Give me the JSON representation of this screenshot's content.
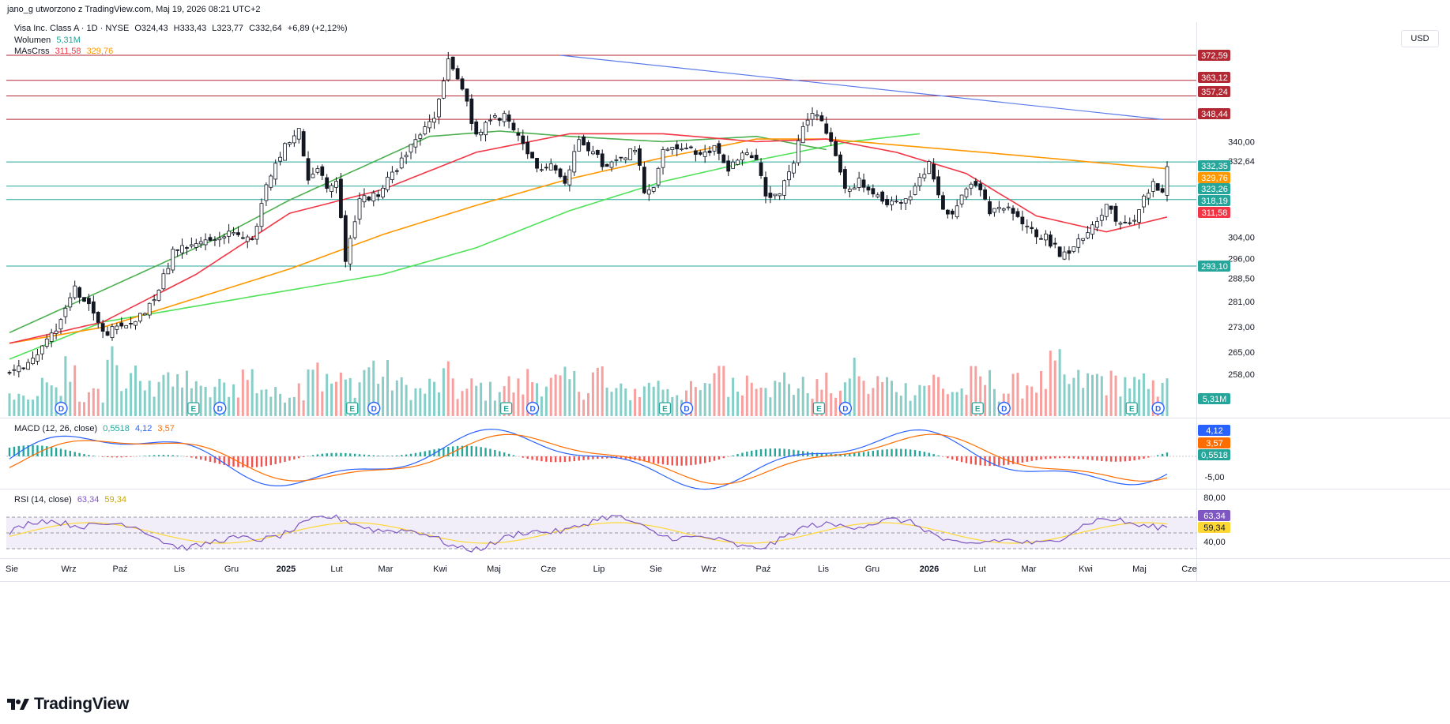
{
  "header": {
    "attribution": "jano_g utworzono z TradingView.com, Maj 19, 2026 08:21 UTC+2"
  },
  "legend": {
    "symbol": "Visa Inc. Class A · 1D · NYSE",
    "o": "O324,43",
    "h": "H333,43",
    "l": "L323,77",
    "c": "C332,64",
    "change": "+6,89 (+2,12%)",
    "volume_label": "Wolumen",
    "volume_value": "5,31M",
    "ma_label": "MAsCrss",
    "ma_fast": "311,58",
    "ma_slow": "329,76",
    "macd_label": "MACD (12, 26, close)",
    "macd_hist": "0,5518",
    "macd_line": "4,12",
    "macd_signal": "3,57",
    "rsi_label": "RSI (14, close)",
    "rsi_value": "63,34",
    "rsi_ma": "59,34"
  },
  "currency_button": "USD",
  "brand": "TradingView",
  "colors": {
    "up": "#26a69a",
    "down": "#ef5350",
    "ma_green": "#4caf50",
    "ma_lime": "#51e25a",
    "ma_red": "#f23645",
    "ma_orange": "#ff9800",
    "trend": "#5b7bea",
    "level_teal": "#26a69a",
    "level_red": "#b22833",
    "macd": "#2962ff",
    "signal": "#ff6d00",
    "rsi": "#7e57c2",
    "rsi_ma": "#fdd835"
  },
  "chart_data": {
    "type": "candlestick",
    "symbol": "Visa Inc. Class A",
    "interval": "1D",
    "exchange": "NYSE",
    "currency": "USD",
    "price_ticks": [
      "340,00",
      "332,64",
      "304,00",
      "296,00",
      "288,50",
      "281,00",
      "273,00",
      "265,00",
      "258,00"
    ],
    "macd_ticks": [
      "-5,00"
    ],
    "rsi_ticks": [
      "80,00",
      "40,00"
    ],
    "time_labels": [
      "Sie",
      "Wrz",
      "Paź",
      "Lis",
      "Gru",
      "2025",
      "Lut",
      "Mar",
      "Kwi",
      "Maj",
      "Cze",
      "Lip",
      "Sie",
      "Wrz",
      "Paź",
      "Lis",
      "Gru",
      "2026",
      "Lut",
      "Mar",
      "Kwi",
      "Maj",
      "Cze"
    ],
    "bold_time_labels": [
      "2025",
      "2026"
    ],
    "price_path": [
      [
        0,
        252
      ],
      [
        5,
        258
      ],
      [
        10,
        270
      ],
      [
        14,
        285
      ],
      [
        17,
        278
      ],
      [
        20,
        268
      ],
      [
        25,
        270
      ],
      [
        30,
        278
      ],
      [
        34,
        293
      ],
      [
        35,
        300
      ],
      [
        40,
        302
      ],
      [
        45,
        304
      ],
      [
        49,
        306
      ],
      [
        52,
        302
      ],
      [
        55,
        323
      ],
      [
        59,
        338
      ],
      [
        62,
        344
      ],
      [
        64,
        326
      ],
      [
        66,
        330
      ],
      [
        68,
        322
      ],
      [
        70,
        326
      ],
      [
        72,
        296
      ],
      [
        75,
        318
      ],
      [
        79,
        320
      ],
      [
        82,
        328
      ],
      [
        85,
        335
      ],
      [
        88,
        343
      ],
      [
        91,
        349
      ],
      [
        94,
        370
      ],
      [
        97,
        360
      ],
      [
        100,
        342
      ],
      [
        103,
        348
      ],
      [
        106,
        350
      ],
      [
        110,
        338
      ],
      [
        113,
        330
      ],
      [
        116,
        332
      ],
      [
        119,
        324
      ],
      [
        122,
        342
      ],
      [
        125,
        336
      ],
      [
        128,
        330
      ],
      [
        131,
        334
      ],
      [
        134,
        338
      ],
      [
        136,
        322
      ],
      [
        138,
        324
      ],
      [
        140,
        336
      ],
      [
        142,
        338
      ],
      [
        145,
        338
      ],
      [
        148,
        334
      ],
      [
        151,
        338
      ],
      [
        154,
        330
      ],
      [
        157,
        336
      ],
      [
        160,
        334
      ],
      [
        162,
        318
      ],
      [
        165,
        320
      ],
      [
        168,
        332
      ],
      [
        170,
        346
      ],
      [
        172,
        352
      ],
      [
        174,
        348
      ],
      [
        176,
        340
      ],
      [
        179,
        322
      ],
      [
        182,
        325
      ],
      [
        185,
        320
      ],
      [
        188,
        316
      ],
      [
        191,
        318
      ],
      [
        194,
        322
      ],
      [
        197,
        332
      ],
      [
        200,
        316
      ],
      [
        202,
        312
      ],
      [
        205,
        323
      ],
      [
        208,
        322
      ],
      [
        210,
        313
      ],
      [
        213,
        315
      ],
      [
        216,
        312
      ],
      [
        219,
        306
      ],
      [
        222,
        304
      ],
      [
        225,
        298
      ],
      [
        228,
        300
      ],
      [
        230,
        304
      ],
      [
        233,
        311
      ],
      [
        235,
        316
      ],
      [
        238,
        308
      ],
      [
        241,
        310
      ],
      [
        243,
        319
      ],
      [
        245,
        324
      ],
      [
        247,
        322
      ],
      [
        248,
        332
      ]
    ],
    "volume_trace": [
      2.1,
      1.5,
      3.0,
      2.5,
      5.0,
      2.0,
      2.2,
      6.1,
      3.3,
      4.0,
      2.9,
      5.2,
      3.1,
      3.9,
      2.4,
      3.0,
      3.1,
      4.2,
      3.1,
      2.2,
      2.5,
      3.0,
      6.1,
      3.5,
      3.5,
      3.4,
      5.1,
      4.2,
      3.7,
      3.0,
      2.6,
      3.1,
      4.0,
      2.5,
      3.0,
      2.6,
      3.3,
      3.0,
      3.9,
      3.7,
      3.4,
      3.6,
      3.1,
      4.5,
      2.6,
      2.5,
      2.7,
      3.7,
      3.2,
      2.6,
      2.6,
      2.7,
      5.4,
      3.0,
      3.9,
      4.5,
      3.0,
      3.9,
      3.0,
      2.9,
      3.2,
      2.5,
      5.1,
      2.9,
      3.5,
      3.2,
      2.8,
      3.3,
      3.7,
      2.7,
      2.7,
      3.8,
      3.6,
      2.6,
      3.2,
      3.5,
      3.5,
      4.9,
      3.5,
      3.6,
      4.0,
      3.5,
      3.6,
      3.2,
      2.8,
      5.3
    ],
    "ma_slow_path": [
      [
        0,
        264
      ],
      [
        20,
        270
      ],
      [
        40,
        281
      ],
      [
        60,
        292
      ],
      [
        80,
        305
      ],
      [
        100,
        316
      ],
      [
        120,
        326
      ],
      [
        140,
        334
      ],
      [
        160,
        341
      ],
      [
        175,
        341
      ],
      [
        195,
        338
      ],
      [
        215,
        335
      ],
      [
        240,
        331
      ],
      [
        248,
        329.8
      ]
    ],
    "ma_long_path": [
      [
        0,
        258
      ],
      [
        20,
        272
      ],
      [
        40,
        278
      ],
      [
        60,
        284
      ],
      [
        80,
        290
      ],
      [
        100,
        300
      ],
      [
        120,
        314
      ],
      [
        140,
        325
      ],
      [
        160,
        333
      ],
      [
        180,
        340
      ],
      [
        195,
        343
      ]
    ],
    "ma_mid_path": [
      [
        0,
        268
      ],
      [
        15,
        280
      ],
      [
        30,
        292
      ],
      [
        45,
        304
      ],
      [
        60,
        318
      ],
      [
        75,
        330
      ],
      [
        90,
        342
      ],
      [
        105,
        344
      ],
      [
        120,
        342
      ],
      [
        140,
        340
      ],
      [
        160,
        342
      ],
      [
        175,
        337
      ]
    ],
    "ma_fast_path": [
      [
        0,
        264
      ],
      [
        20,
        272
      ],
      [
        40,
        290
      ],
      [
        60,
        313
      ],
      [
        80,
        322
      ],
      [
        100,
        336
      ],
      [
        120,
        343
      ],
      [
        140,
        343
      ],
      [
        160,
        340
      ],
      [
        175,
        341
      ],
      [
        190,
        336
      ],
      [
        205,
        328
      ],
      [
        220,
        312
      ],
      [
        235,
        306
      ],
      [
        248,
        311.6
      ]
    ],
    "trendline": [
      [
        118,
        372.6
      ],
      [
        247,
        348.4
      ]
    ],
    "levels": [
      {
        "value": 372.59,
        "label": "372,59",
        "color": "#b22833"
      },
      {
        "value": 363.12,
        "label": "363,12",
        "color": "#b22833"
      },
      {
        "value": 357.24,
        "label": "357,24",
        "color": "#b22833"
      },
      {
        "value": 348.44,
        "label": "348,44",
        "color": "#b22833"
      },
      {
        "value": 332.64,
        "label": "332,64",
        "color": "#26a69a",
        "line": false
      },
      {
        "value": 332.35,
        "label": "332,35",
        "color": "#26a69a"
      },
      {
        "value": 329.76,
        "label": "329,76",
        "color": "#ff9800",
        "line": false
      },
      {
        "value": 323.26,
        "label": "323,26",
        "color": "#26a69a"
      },
      {
        "value": 318.19,
        "label": "318,19",
        "color": "#26a69a"
      },
      {
        "value": 311.58,
        "label": "311,58",
        "color": "#f23645",
        "line": false
      },
      {
        "value": 293.1,
        "label": "293,10",
        "color": "#26a69a"
      }
    ],
    "volume_badge": "5,31M",
    "macd_badges": [
      {
        "label": "4,12",
        "color": "#2962ff"
      },
      {
        "label": "3,57",
        "color": "#ff6d00"
      },
      {
        "label": "0,5518",
        "color": "#26a69a"
      }
    ],
    "rsi_badges": [
      {
        "label": "63,34",
        "color": "#7e57c2"
      },
      {
        "label": "59,34",
        "color": "#fdd835"
      }
    ],
    "rsi_bands": [
      70,
      50,
      30
    ],
    "dividend_markers": [
      6,
      40,
      73,
      107,
      140,
      174,
      208,
      241
    ],
    "earnings_markers": [
      34,
      68,
      101,
      135,
      168,
      202,
      235
    ]
  }
}
